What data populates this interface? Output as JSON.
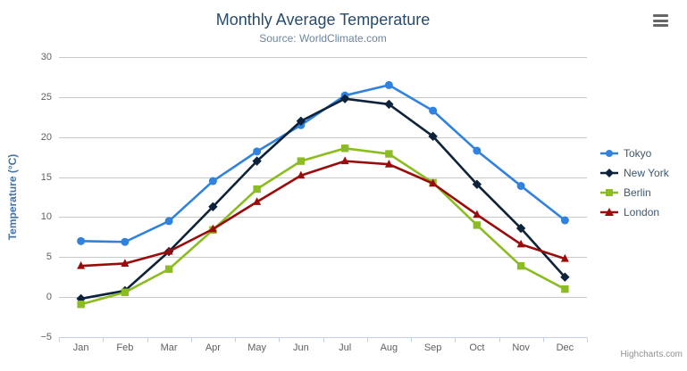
{
  "chart": {
    "title": "Monthly Average Temperature",
    "subtitle": "Source: WorldClimate.com",
    "y_axis_title": "Temperature (°C)",
    "credit": "Highcharts.com"
  },
  "icons": {
    "context_menu": "hamburger-icon"
  },
  "colors": {
    "title": "#274b6d",
    "subtitle": "#6d869f",
    "axis_title": "#4572a7",
    "tick_label": "#606060",
    "gridline": "#c8c8c8",
    "axis_line": "#c0d0e0",
    "legend_text": "#3e576f",
    "credit_text": "#909090"
  },
  "chart_data": {
    "type": "line",
    "title": "Monthly Average Temperature",
    "subtitle": "Source: WorldClimate.com",
    "xlabel": "",
    "ylabel": "Temperature (°C)",
    "categories": [
      "Jan",
      "Feb",
      "Mar",
      "Apr",
      "May",
      "Jun",
      "Jul",
      "Aug",
      "Sep",
      "Oct",
      "Nov",
      "Dec"
    ],
    "ylim": [
      -5,
      30
    ],
    "yticks": [
      -5,
      0,
      5,
      10,
      15,
      20,
      25,
      30
    ],
    "grid": true,
    "legend_position": "right",
    "series": [
      {
        "name": "Tokyo",
        "color": "#3082dc",
        "marker": "circle",
        "values": [
          7.0,
          6.9,
          9.5,
          14.5,
          18.2,
          21.5,
          25.2,
          26.5,
          23.3,
          18.3,
          13.9,
          9.6
        ]
      },
      {
        "name": "New York",
        "color": "#0d233a",
        "marker": "diamond",
        "values": [
          -0.2,
          0.8,
          5.7,
          11.3,
          17.0,
          22.0,
          24.8,
          24.1,
          20.1,
          14.1,
          8.6,
          2.5
        ]
      },
      {
        "name": "Berlin",
        "color": "#8bbc21",
        "marker": "square",
        "values": [
          -0.9,
          0.6,
          3.5,
          8.4,
          13.5,
          17.0,
          18.6,
          17.9,
          14.3,
          9.0,
          3.9,
          1.0
        ]
      },
      {
        "name": "London",
        "color": "#9a0c0c",
        "marker": "triangle",
        "values": [
          3.9,
          4.2,
          5.7,
          8.5,
          11.9,
          15.2,
          17.0,
          16.6,
          14.2,
          10.3,
          6.6,
          4.8
        ]
      }
    ]
  }
}
